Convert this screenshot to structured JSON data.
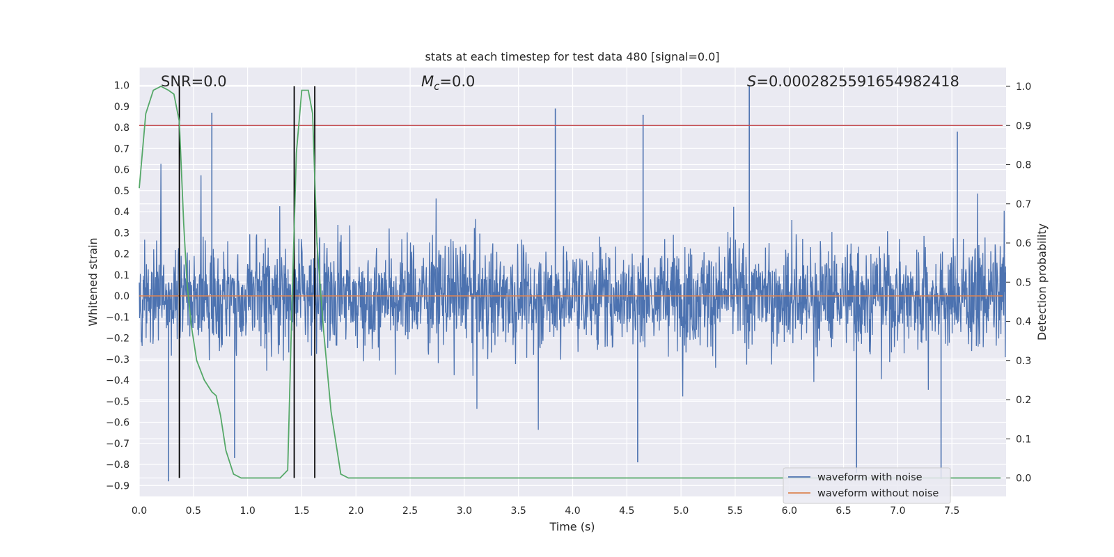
{
  "chart_data": {
    "type": "line",
    "title": "stats at each timestep for test data 480 [signal=0.0]",
    "xlabel": "Time (s)",
    "ylabel": "Whitened strain",
    "y2label": "Detection probability",
    "xlim": [
      0.0,
      8.0
    ],
    "ylim": [
      -1.05,
      1.1
    ],
    "y2lim": [
      -0.05,
      1.04
    ],
    "x_ticks": [
      "0.0",
      "0.5",
      "1.0",
      "1.5",
      "2.0",
      "2.5",
      "3.0",
      "3.5",
      "4.0",
      "4.5",
      "5.0",
      "5.5",
      "6.0",
      "6.5",
      "7.0",
      "7.5"
    ],
    "y_ticks": [
      "-0.9",
      "-0.8",
      "-0.7",
      "-0.6",
      "-0.5",
      "-0.4",
      "-0.3",
      "-0.2",
      "-0.1",
      "0.0",
      "0.1",
      "0.2",
      "0.3",
      "0.4",
      "0.5",
      "0.6",
      "0.7",
      "0.8",
      "0.9",
      "1.0"
    ],
    "y2_ticks": [
      "0.0",
      "0.1",
      "0.2",
      "0.3",
      "0.4",
      "0.5",
      "0.6",
      "0.7",
      "0.8",
      "0.9",
      "1.0"
    ],
    "grid": true,
    "legend_position": "lower-right",
    "annotations": {
      "snr": "SNR=0.0",
      "mc_symbol": "M",
      "mc_sub": "c",
      "mc_value": "=0.0",
      "s_symbol": "S",
      "s_value": "=0.0002825591654982418"
    },
    "series": [
      {
        "name": "waveform with noise",
        "color": "#4c72b0",
        "axis": "left",
        "description_values": {
          "approx_envelope_upper": 0.45,
          "approx_envelope_lower": -0.4,
          "notable_peaks": [
            [
              0.67,
              0.87
            ],
            [
              3.84,
              0.89
            ],
            [
              4.65,
              0.86
            ],
            [
              5.63,
              1.0
            ],
            [
              7.55,
              0.78
            ],
            [
              0.88,
              -0.77
            ],
            [
              0.27,
              -0.88
            ],
            [
              6.62,
              -0.84
            ],
            [
              7.4,
              -0.87
            ],
            [
              4.6,
              -0.79
            ]
          ]
        }
      },
      {
        "name": "waveform without noise",
        "color": "#dd8452",
        "axis": "left",
        "x": [
          0.0,
          8.0
        ],
        "y": [
          0.0,
          0.0
        ]
      },
      {
        "color": "#55a868",
        "axis": "right",
        "x": [
          0.0,
          0.06,
          0.13,
          0.2,
          0.27,
          0.32,
          0.37,
          0.41,
          0.44,
          0.48,
          0.53,
          0.6,
          0.67,
          0.71,
          0.75,
          0.8,
          0.87,
          0.94,
          1.0,
          1.1,
          1.2,
          1.3,
          1.37,
          1.41,
          1.45,
          1.5,
          1.56,
          1.6,
          1.64,
          1.7,
          1.77,
          1.86,
          1.93,
          2.0,
          3.0,
          4.0,
          5.0,
          6.0,
          7.0,
          7.95
        ],
        "y": [
          0.74,
          0.93,
          0.99,
          1.0,
          0.99,
          0.98,
          0.91,
          0.65,
          0.5,
          0.39,
          0.3,
          0.25,
          0.22,
          0.21,
          0.16,
          0.07,
          0.01,
          0.0,
          0.0,
          0.0,
          0.0,
          0.0,
          0.02,
          0.45,
          0.83,
          0.99,
          0.99,
          0.93,
          0.6,
          0.38,
          0.17,
          0.01,
          0.0,
          0.0,
          0.0,
          0.0,
          0.0,
          0.0,
          0.0,
          0.0
        ]
      }
    ],
    "threshold_line": {
      "axis": "right",
      "y": 0.9,
      "color": "#c44e52"
    },
    "vertical_lines": [
      0.37,
      1.43,
      1.62
    ]
  }
}
